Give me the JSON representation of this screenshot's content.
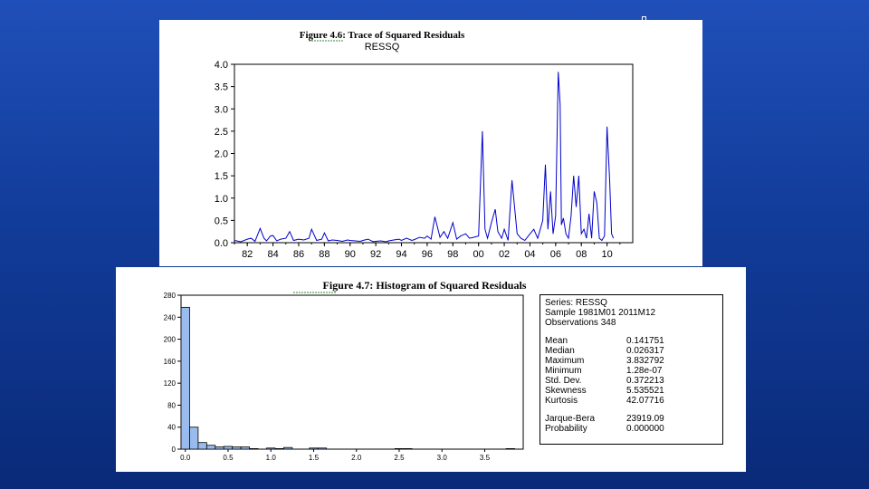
{
  "top_figure": {
    "title": "Figure 4.6: Trace of Squared Residuals",
    "subtitle": "RESSQ"
  },
  "bottom_figure": {
    "title": "Figure 4.7: Histogram of Squared Residuals"
  },
  "stats": {
    "series": "Series: RESSQ",
    "sample": "Sample 1981M01 2011M12",
    "observations": "Observations 348",
    "rows": [
      {
        "label": "Mean",
        "value": "0.141751"
      },
      {
        "label": "Median",
        "value": "0.026317"
      },
      {
        "label": "Maximum",
        "value": "3.832792"
      },
      {
        "label": "Minimum",
        "value": "1.28e-07"
      },
      {
        "label": "Std. Dev.",
        "value": "0.372213"
      },
      {
        "label": "Skewness",
        "value": "5.535521"
      },
      {
        "label": "Kurtosis",
        "value": "42.07716"
      }
    ],
    "rows2": [
      {
        "label": "Jarque-Bera",
        "value": "23919.09"
      },
      {
        "label": "Probability",
        "value": "0.000000"
      }
    ]
  },
  "colors": {
    "line": "#0000cc",
    "bar_fill": "#99bbee",
    "bar_stroke": "#000000"
  },
  "chart_data": [
    {
      "type": "line",
      "title": "RESSQ",
      "ylim": [
        0,
        4.0
      ],
      "yticks": [
        "0.0",
        "0.5",
        "1.0",
        "1.5",
        "2.0",
        "2.5",
        "3.0",
        "3.5",
        "4.0"
      ],
      "xticks": [
        "82",
        "84",
        "86",
        "88",
        "90",
        "92",
        "94",
        "96",
        "98",
        "00",
        "02",
        "04",
        "06",
        "08",
        "10"
      ],
      "xlim": [
        1981.0,
        2012.0
      ],
      "series": [
        {
          "x": [
            1981.0,
            1981.5,
            1982.0,
            1982.3,
            1982.6,
            1983.0,
            1983.3,
            1983.5,
            1983.8,
            1984.0,
            1984.3,
            1984.6,
            1985.0,
            1985.3,
            1985.6,
            1986.0,
            1986.4,
            1986.8,
            1987.0,
            1987.4,
            1987.8,
            1988.0,
            1988.3,
            1988.6,
            1989.0,
            1989.4,
            1989.8,
            1990.0,
            1990.4,
            1990.8,
            1991.0,
            1991.4,
            1991.8,
            1992.0,
            1992.4,
            1992.8,
            1993.0,
            1993.4,
            1993.8,
            1994.0,
            1994.4,
            1994.8,
            1995.0,
            1995.4,
            1995.8,
            1996.0,
            1996.3,
            1996.6,
            1997.0,
            1997.3,
            1997.6,
            1998.0,
            1998.3,
            1998.6,
            1999.0,
            1999.3,
            1999.6,
            2000.0,
            2000.3,
            2000.5,
            2000.7,
            2001.0,
            2001.3,
            2001.5,
            2001.8,
            2002.0,
            2002.3,
            2002.6,
            2003.0,
            2003.3,
            2003.6,
            2004.0,
            2004.3,
            2004.6,
            2005.0,
            2005.2,
            2005.4,
            2005.6,
            2005.8,
            2006.0,
            2006.2,
            2006.35,
            2006.45,
            2006.6,
            2006.8,
            2007.0,
            2007.2,
            2007.4,
            2007.6,
            2007.8,
            2008.0,
            2008.2,
            2008.4,
            2008.6,
            2008.8,
            2009.0,
            2009.2,
            2009.4,
            2009.6,
            2009.8,
            2010.0,
            2010.2,
            2010.35,
            2010.5
          ],
          "y": [
            0.05,
            0.02,
            0.08,
            0.1,
            0.03,
            0.32,
            0.1,
            0.04,
            0.15,
            0.16,
            0.04,
            0.08,
            0.1,
            0.25,
            0.05,
            0.08,
            0.06,
            0.1,
            0.3,
            0.05,
            0.08,
            0.22,
            0.04,
            0.06,
            0.05,
            0.03,
            0.06,
            0.05,
            0.04,
            0.03,
            0.05,
            0.08,
            0.02,
            0.03,
            0.04,
            0.02,
            0.04,
            0.06,
            0.08,
            0.05,
            0.1,
            0.05,
            0.07,
            0.12,
            0.1,
            0.15,
            0.08,
            0.58,
            0.12,
            0.25,
            0.1,
            0.45,
            0.08,
            0.15,
            0.2,
            0.1,
            0.12,
            0.15,
            2.5,
            0.3,
            0.1,
            0.45,
            0.75,
            0.25,
            0.1,
            0.3,
            0.05,
            1.4,
            0.2,
            0.1,
            0.05,
            0.2,
            0.3,
            0.1,
            0.5,
            1.75,
            0.3,
            1.15,
            0.2,
            0.6,
            3.83,
            3.1,
            0.4,
            0.55,
            0.2,
            0.1,
            0.6,
            1.5,
            0.8,
            1.5,
            0.2,
            0.3,
            0.1,
            0.65,
            0.1,
            1.15,
            0.9,
            0.1,
            0.05,
            0.15,
            2.6,
            1.4,
            0.2,
            0.1
          ]
        }
      ]
    },
    {
      "type": "bar",
      "title": "",
      "ylim": [
        0,
        280
      ],
      "yticks": [
        "0",
        "40",
        "80",
        "120",
        "160",
        "200",
        "240",
        "280"
      ],
      "xticks": [
        "0.0",
        "0.5",
        "1.0",
        "1.5",
        "2.0",
        "2.5",
        "3.0",
        "3.5"
      ],
      "xlim": [
        -0.05,
        3.95
      ],
      "bin_width": 0.1,
      "bins": [
        0.0,
        0.1,
        0.2,
        0.3,
        0.4,
        0.5,
        0.6,
        0.7,
        0.8,
        0.9,
        1.0,
        1.1,
        1.2,
        1.3,
        1.4,
        1.5,
        1.6,
        1.7,
        1.8,
        1.9,
        2.0,
        2.1,
        2.2,
        2.3,
        2.4,
        2.5,
        2.6,
        2.7,
        2.8,
        2.9,
        3.0,
        3.1,
        3.2,
        3.3,
        3.4,
        3.5,
        3.6,
        3.7,
        3.8
      ],
      "values": [
        258,
        40,
        12,
        7,
        4,
        5,
        4,
        4,
        1,
        0,
        2,
        1,
        3,
        0,
        0,
        2,
        2,
        0,
        0,
        0,
        0,
        0,
        0,
        0,
        0,
        1,
        1,
        0,
        0,
        0,
        0,
        0,
        0,
        0,
        0,
        0,
        0,
        0,
        1
      ]
    }
  ]
}
